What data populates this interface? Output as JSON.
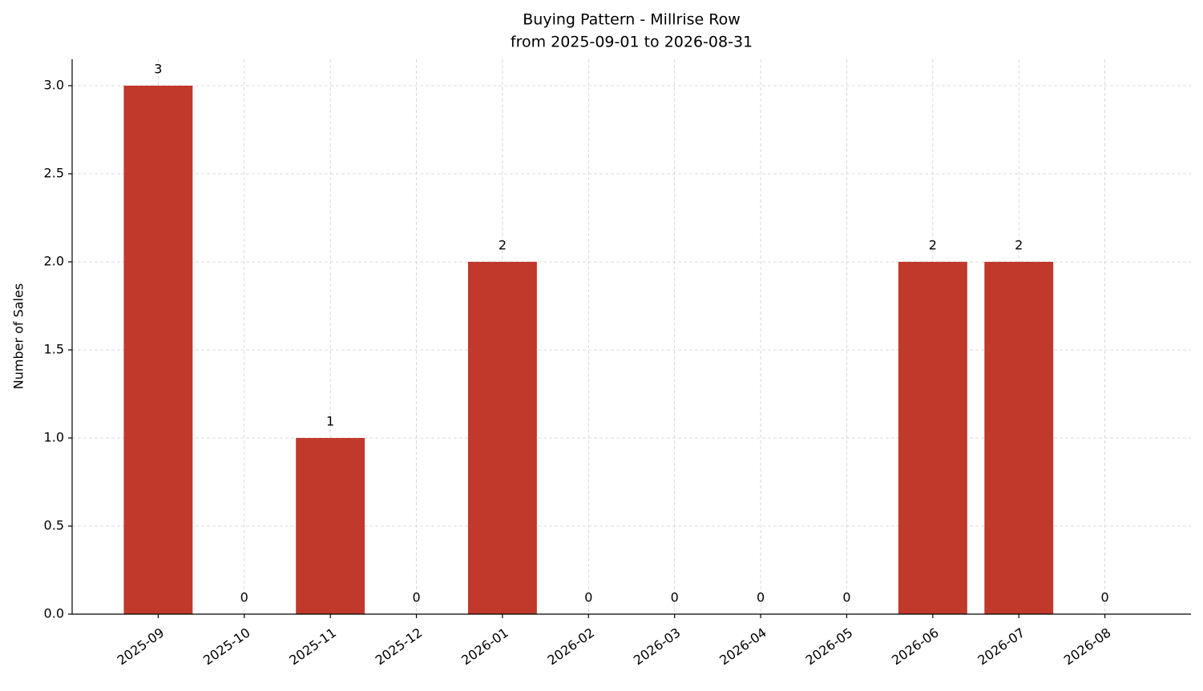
{
  "chart_data": {
    "type": "bar",
    "title": "Buying Pattern - Millrise Row",
    "subtitle": "from 2025-09-01 to 2026-08-31",
    "y_label": "Number of Sales",
    "categories": [
      "2025-09",
      "2025-10",
      "2025-11",
      "2025-12",
      "2026-01",
      "2026-02",
      "2026-03",
      "2026-04",
      "2026-05",
      "2026-06",
      "2026-07",
      "2026-08"
    ],
    "values": [
      3,
      0,
      1,
      0,
      2,
      0,
      0,
      0,
      0,
      2,
      2,
      0
    ],
    "color": "#c0392b",
    "ylim": [
      0,
      3.15
    ],
    "yticks": [
      {
        "value": 0,
        "label": "0.0"
      },
      {
        "value": 0.5,
        "label": "0.5"
      },
      {
        "value": 1,
        "label": "1.0"
      },
      {
        "value": 1.5,
        "label": "1.5"
      },
      {
        "value": 2,
        "label": "2.0"
      },
      {
        "value": 2.5,
        "label": "2.5"
      },
      {
        "value": 3,
        "label": "3.0"
      }
    ],
    "grid": true
  }
}
